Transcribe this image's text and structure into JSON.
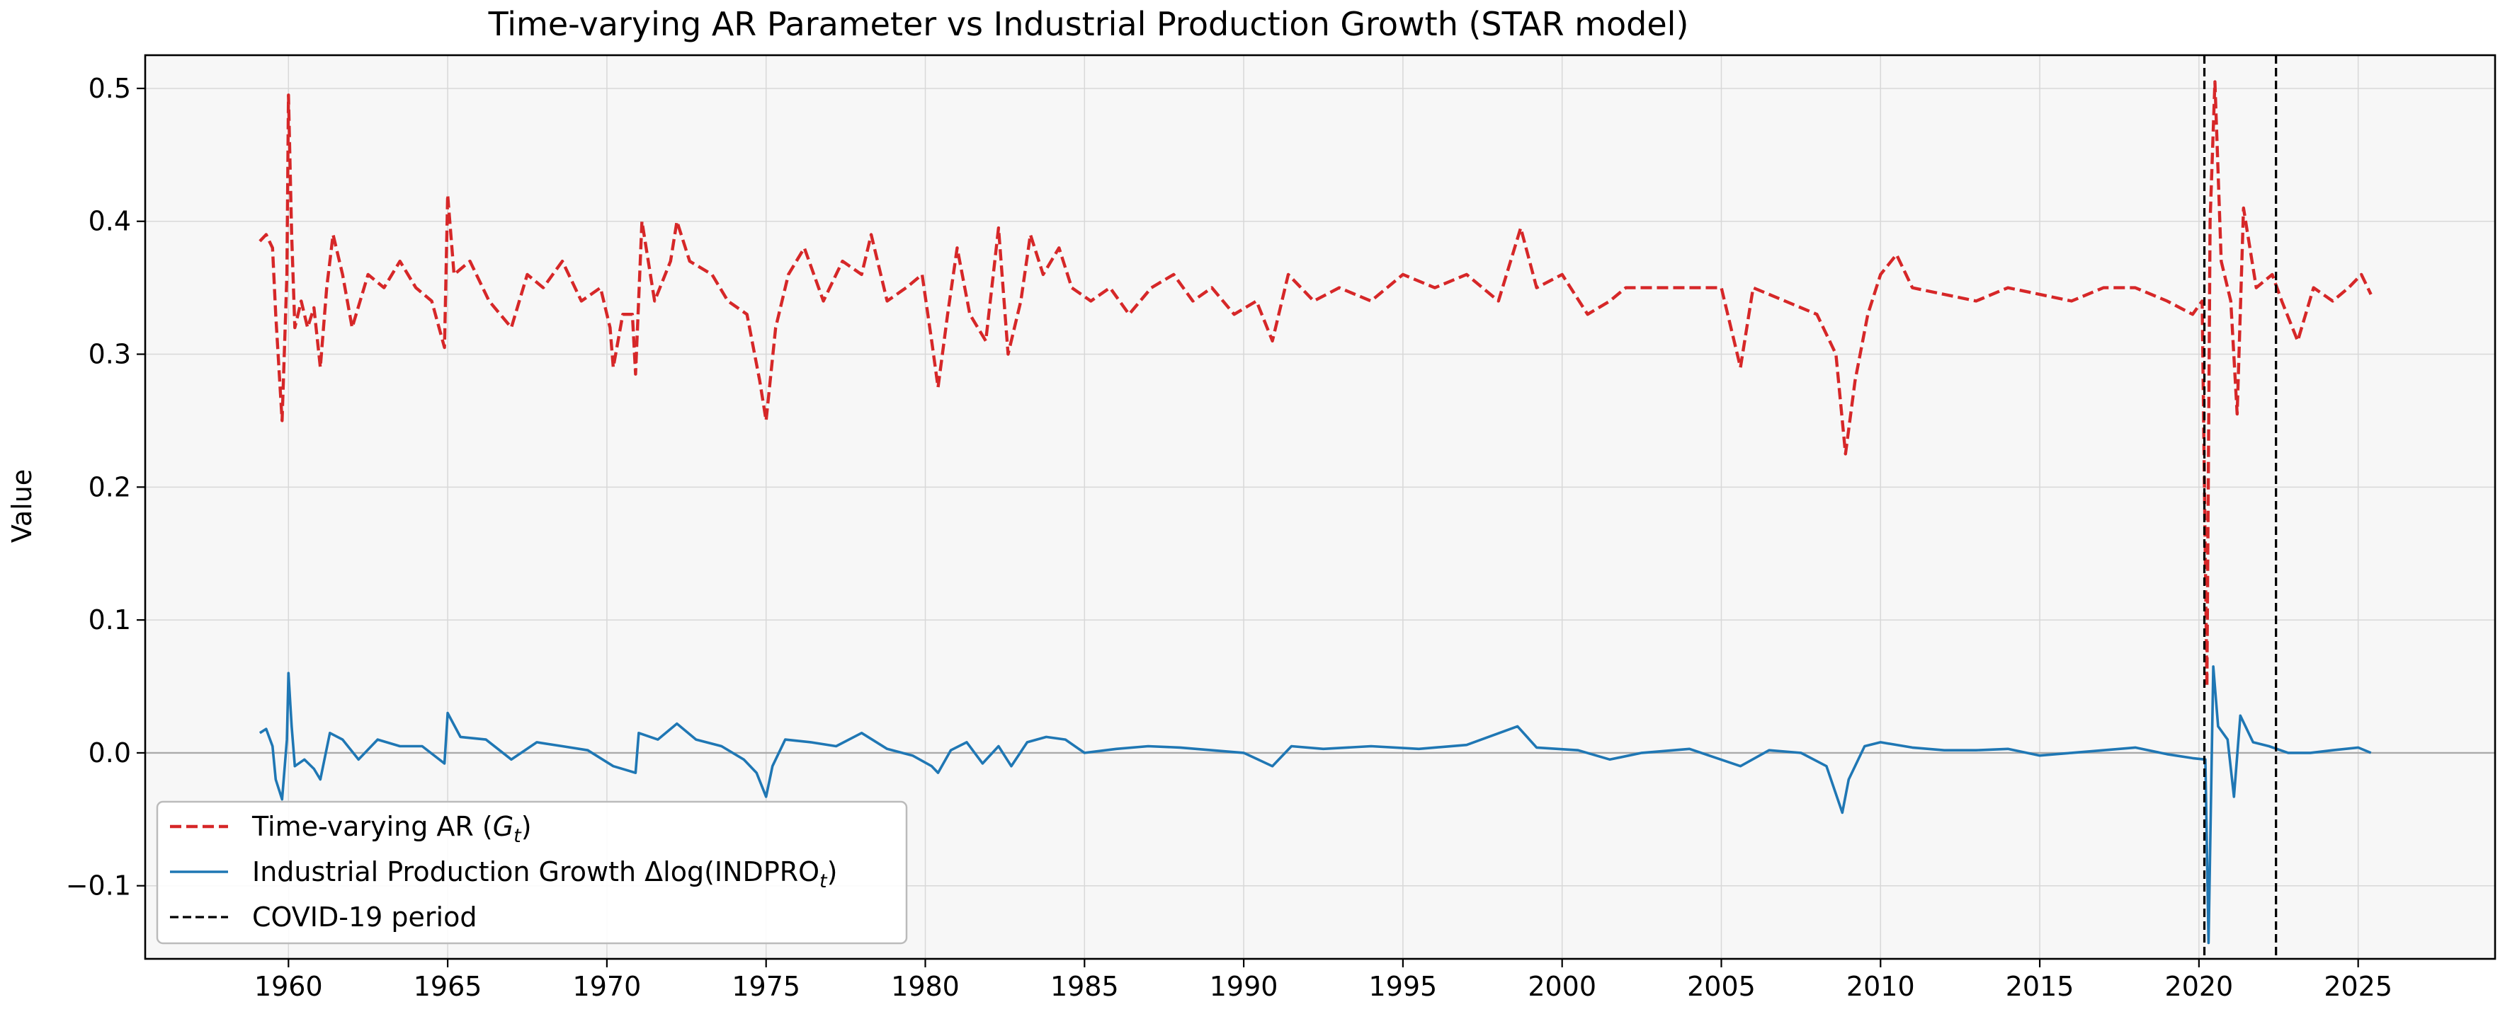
{
  "chart_data": {
    "type": "line",
    "title": "Time-varying AR Parameter vs Industrial Production Growth (STAR model)",
    "xlabel": "",
    "ylabel": "Value",
    "xlim": [
      1955.5,
      2029.3
    ],
    "ylim": [
      -0.155,
      0.525
    ],
    "xticks": [
      1960,
      1965,
      1970,
      1975,
      1980,
      1985,
      1990,
      1995,
      2000,
      2005,
      2010,
      2015,
      2020,
      2025
    ],
    "yticks": [
      -0.1,
      0.0,
      0.1,
      0.2,
      0.3,
      0.4,
      0.5
    ],
    "ytick_labels": [
      "−0.1",
      "0.0",
      "0.1",
      "0.2",
      "0.3",
      "0.4",
      "0.5"
    ],
    "grid": true,
    "legend_position": "lower-left",
    "zero_line": 0.0,
    "series": [
      {
        "name": "Time-varying AR (G_t)",
        "legend_text": "Time-varying AR (",
        "legend_sym": "G",
        "legend_sub": "t",
        "legend_tail": ")",
        "color": "#d62728",
        "style": "dashed",
        "points": [
          [
            1959.1,
            0.385
          ],
          [
            1959.3,
            0.39
          ],
          [
            1959.5,
            0.38
          ],
          [
            1959.6,
            0.33
          ],
          [
            1959.8,
            0.25
          ],
          [
            1959.95,
            0.36
          ],
          [
            1960.0,
            0.495
          ],
          [
            1960.1,
            0.39
          ],
          [
            1960.2,
            0.32
          ],
          [
            1960.4,
            0.34
          ],
          [
            1960.6,
            0.32
          ],
          [
            1960.8,
            0.335
          ],
          [
            1961.0,
            0.29
          ],
          [
            1961.2,
            0.35
          ],
          [
            1961.4,
            0.39
          ],
          [
            1961.7,
            0.36
          ],
          [
            1962.0,
            0.32
          ],
          [
            1962.5,
            0.36
          ],
          [
            1963.0,
            0.35
          ],
          [
            1963.5,
            0.37
          ],
          [
            1964.0,
            0.35
          ],
          [
            1964.5,
            0.34
          ],
          [
            1964.9,
            0.305
          ],
          [
            1965.0,
            0.42
          ],
          [
            1965.2,
            0.36
          ],
          [
            1965.7,
            0.37
          ],
          [
            1966.3,
            0.34
          ],
          [
            1967.0,
            0.32
          ],
          [
            1967.5,
            0.36
          ],
          [
            1968.0,
            0.35
          ],
          [
            1968.6,
            0.37
          ],
          [
            1969.2,
            0.34
          ],
          [
            1969.8,
            0.35
          ],
          [
            1970.1,
            0.32
          ],
          [
            1970.2,
            0.29
          ],
          [
            1970.5,
            0.33
          ],
          [
            1970.8,
            0.33
          ],
          [
            1970.9,
            0.285
          ],
          [
            1971.1,
            0.4
          ],
          [
            1971.5,
            0.34
          ],
          [
            1972.0,
            0.37
          ],
          [
            1972.2,
            0.4
          ],
          [
            1972.6,
            0.37
          ],
          [
            1973.3,
            0.36
          ],
          [
            1973.8,
            0.34
          ],
          [
            1974.4,
            0.33
          ],
          [
            1974.8,
            0.28
          ],
          [
            1975.0,
            0.25
          ],
          [
            1975.3,
            0.32
          ],
          [
            1975.7,
            0.36
          ],
          [
            1976.2,
            0.38
          ],
          [
            1976.8,
            0.34
          ],
          [
            1977.4,
            0.37
          ],
          [
            1978.0,
            0.36
          ],
          [
            1978.3,
            0.39
          ],
          [
            1978.8,
            0.34
          ],
          [
            1979.4,
            0.35
          ],
          [
            1979.9,
            0.36
          ],
          [
            1980.2,
            0.31
          ],
          [
            1980.4,
            0.275
          ],
          [
            1980.7,
            0.33
          ],
          [
            1981.0,
            0.38
          ],
          [
            1981.4,
            0.33
          ],
          [
            1981.9,
            0.31
          ],
          [
            1982.3,
            0.395
          ],
          [
            1982.6,
            0.3
          ],
          [
            1983.0,
            0.34
          ],
          [
            1983.3,
            0.39
          ],
          [
            1983.7,
            0.36
          ],
          [
            1984.2,
            0.38
          ],
          [
            1984.6,
            0.35
          ],
          [
            1985.2,
            0.34
          ],
          [
            1985.8,
            0.35
          ],
          [
            1986.4,
            0.33
          ],
          [
            1987.1,
            0.35
          ],
          [
            1987.8,
            0.36
          ],
          [
            1988.4,
            0.34
          ],
          [
            1989.0,
            0.35
          ],
          [
            1989.7,
            0.33
          ],
          [
            1990.4,
            0.34
          ],
          [
            1990.9,
            0.31
          ],
          [
            1991.4,
            0.36
          ],
          [
            1992.2,
            0.34
          ],
          [
            1993.0,
            0.35
          ],
          [
            1994.0,
            0.34
          ],
          [
            1995.0,
            0.36
          ],
          [
            1996.0,
            0.35
          ],
          [
            1997.0,
            0.36
          ],
          [
            1998.0,
            0.34
          ],
          [
            1998.7,
            0.395
          ],
          [
            1999.2,
            0.35
          ],
          [
            2000.0,
            0.36
          ],
          [
            2000.8,
            0.33
          ],
          [
            2001.5,
            0.34
          ],
          [
            2002.0,
            0.35
          ],
          [
            2003.0,
            0.35
          ],
          [
            2004.0,
            0.35
          ],
          [
            2005.0,
            0.35
          ],
          [
            2005.6,
            0.29
          ],
          [
            2006.0,
            0.35
          ],
          [
            2007.0,
            0.34
          ],
          [
            2008.0,
            0.33
          ],
          [
            2008.6,
            0.3
          ],
          [
            2008.9,
            0.225
          ],
          [
            2009.2,
            0.28
          ],
          [
            2009.6,
            0.33
          ],
          [
            2010.0,
            0.36
          ],
          [
            2010.5,
            0.375
          ],
          [
            2011.0,
            0.35
          ],
          [
            2012.0,
            0.345
          ],
          [
            2013.0,
            0.34
          ],
          [
            2014.0,
            0.35
          ],
          [
            2015.0,
            0.345
          ],
          [
            2016.0,
            0.34
          ],
          [
            2017.0,
            0.35
          ],
          [
            2018.0,
            0.35
          ],
          [
            2019.0,
            0.34
          ],
          [
            2019.8,
            0.33
          ],
          [
            2020.1,
            0.34
          ],
          [
            2020.25,
            0.05
          ],
          [
            2020.35,
            0.4
          ],
          [
            2020.5,
            0.505
          ],
          [
            2020.7,
            0.37
          ],
          [
            2021.0,
            0.34
          ],
          [
            2021.2,
            0.255
          ],
          [
            2021.4,
            0.41
          ],
          [
            2021.8,
            0.35
          ],
          [
            2022.3,
            0.36
          ],
          [
            2022.6,
            0.34
          ],
          [
            2023.1,
            0.31
          ],
          [
            2023.6,
            0.35
          ],
          [
            2024.2,
            0.34
          ],
          [
            2024.7,
            0.35
          ],
          [
            2025.1,
            0.36
          ],
          [
            2025.4,
            0.345
          ]
        ]
      },
      {
        "name": "Industrial Production Growth Δlog(INDPRO_t)",
        "legend_text": "Industrial Production Growth Δlog(INDPRO",
        "legend_sym": "",
        "legend_sub": "t",
        "legend_tail": ")",
        "color": "#1f77b4",
        "style": "solid",
        "points": [
          [
            1959.1,
            0.015
          ],
          [
            1959.3,
            0.018
          ],
          [
            1959.5,
            0.005
          ],
          [
            1959.6,
            -0.02
          ],
          [
            1959.8,
            -0.035
          ],
          [
            1959.95,
            0.01
          ],
          [
            1960.0,
            0.06
          ],
          [
            1960.1,
            0.02
          ],
          [
            1960.2,
            -0.01
          ],
          [
            1960.5,
            -0.005
          ],
          [
            1960.8,
            -0.012
          ],
          [
            1961.0,
            -0.02
          ],
          [
            1961.3,
            0.015
          ],
          [
            1961.7,
            0.01
          ],
          [
            1962.2,
            -0.005
          ],
          [
            1962.8,
            0.01
          ],
          [
            1963.5,
            0.005
          ],
          [
            1964.2,
            0.005
          ],
          [
            1964.9,
            -0.008
          ],
          [
            1965.0,
            0.03
          ],
          [
            1965.4,
            0.012
          ],
          [
            1966.2,
            0.01
          ],
          [
            1967.0,
            -0.005
          ],
          [
            1967.8,
            0.008
          ],
          [
            1968.6,
            0.005
          ],
          [
            1969.4,
            0.002
          ],
          [
            1970.2,
            -0.01
          ],
          [
            1970.9,
            -0.015
          ],
          [
            1971.0,
            0.015
          ],
          [
            1971.6,
            0.01
          ],
          [
            1972.2,
            0.022
          ],
          [
            1972.8,
            0.01
          ],
          [
            1973.6,
            0.005
          ],
          [
            1974.3,
            -0.005
          ],
          [
            1974.7,
            -0.015
          ],
          [
            1975.0,
            -0.033
          ],
          [
            1975.2,
            -0.01
          ],
          [
            1975.6,
            0.01
          ],
          [
            1976.4,
            0.008
          ],
          [
            1977.2,
            0.005
          ],
          [
            1978.0,
            0.015
          ],
          [
            1978.8,
            0.003
          ],
          [
            1979.6,
            -0.002
          ],
          [
            1980.2,
            -0.01
          ],
          [
            1980.4,
            -0.015
          ],
          [
            1980.8,
            0.002
          ],
          [
            1981.3,
            0.008
          ],
          [
            1981.8,
            -0.008
          ],
          [
            1982.3,
            0.005
          ],
          [
            1982.7,
            -0.01
          ],
          [
            1983.2,
            0.008
          ],
          [
            1983.8,
            0.012
          ],
          [
            1984.4,
            0.01
          ],
          [
            1985.0,
            0.0
          ],
          [
            1986.0,
            0.003
          ],
          [
            1987.0,
            0.005
          ],
          [
            1988.0,
            0.004
          ],
          [
            1989.0,
            0.002
          ],
          [
            1990.0,
            0.0
          ],
          [
            1990.9,
            -0.01
          ],
          [
            1991.5,
            0.005
          ],
          [
            1992.5,
            0.003
          ],
          [
            1994.0,
            0.005
          ],
          [
            1995.5,
            0.003
          ],
          [
            1997.0,
            0.006
          ],
          [
            1998.6,
            0.02
          ],
          [
            1999.2,
            0.004
          ],
          [
            2000.5,
            0.002
          ],
          [
            2001.5,
            -0.005
          ],
          [
            2002.5,
            0.0
          ],
          [
            2004.0,
            0.003
          ],
          [
            2005.6,
            -0.01
          ],
          [
            2006.5,
            0.002
          ],
          [
            2007.5,
            0.0
          ],
          [
            2008.3,
            -0.01
          ],
          [
            2008.8,
            -0.045
          ],
          [
            2009.0,
            -0.02
          ],
          [
            2009.5,
            0.005
          ],
          [
            2010.0,
            0.008
          ],
          [
            2011.0,
            0.004
          ],
          [
            2012.0,
            0.002
          ],
          [
            2013.0,
            0.002
          ],
          [
            2014.0,
            0.003
          ],
          [
            2015.0,
            -0.002
          ],
          [
            2016.0,
            0.0
          ],
          [
            2017.0,
            0.002
          ],
          [
            2018.0,
            0.004
          ],
          [
            2019.0,
            -0.001
          ],
          [
            2019.8,
            -0.004
          ],
          [
            2020.2,
            -0.005
          ],
          [
            2020.3,
            -0.143
          ],
          [
            2020.45,
            0.065
          ],
          [
            2020.6,
            0.02
          ],
          [
            2020.9,
            0.01
          ],
          [
            2021.1,
            -0.033
          ],
          [
            2021.3,
            0.028
          ],
          [
            2021.7,
            0.008
          ],
          [
            2022.2,
            0.005
          ],
          [
            2022.8,
            0.0
          ],
          [
            2023.5,
            0.0
          ],
          [
            2024.2,
            0.002
          ],
          [
            2025.0,
            0.004
          ],
          [
            2025.4,
            0.0
          ]
        ]
      }
    ],
    "vlines": {
      "name": "COVID-19 period",
      "x": [
        2020.17,
        2022.42
      ],
      "color": "#000000",
      "style": "dashed"
    },
    "colors": {
      "plot_bg": "#f7f7f7",
      "grid": "#d8d8d8",
      "zero_line": "#aaaaaa",
      "legend_border": "#bbbbbb"
    }
  }
}
